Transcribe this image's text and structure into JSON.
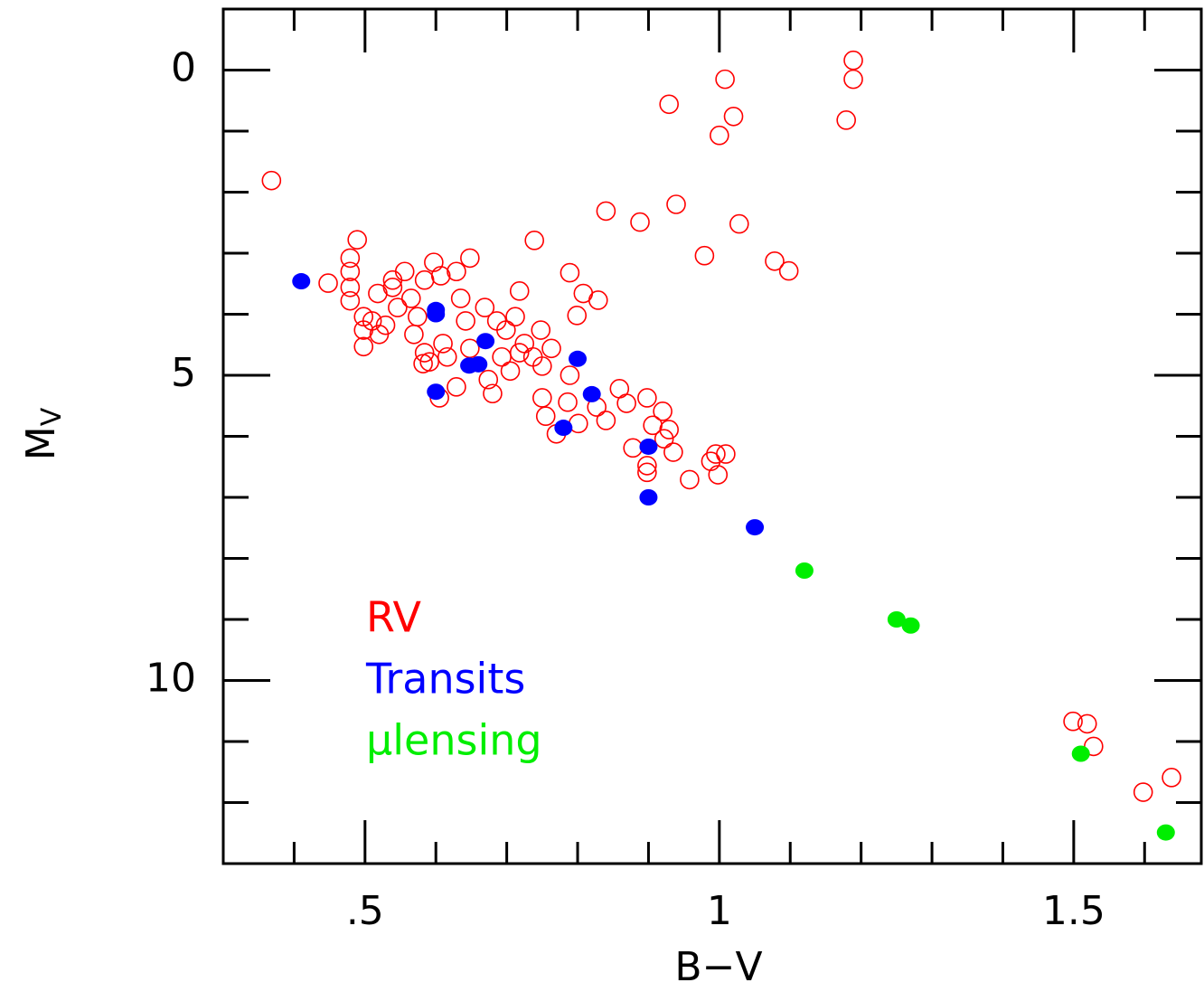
{
  "chart_data": {
    "type": "scatter",
    "xlabel": "B−V",
    "ylabel": "M",
    "ylabel_sub": "V",
    "xlim": [
      0.3,
      1.68
    ],
    "ylim": [
      -1,
      13
    ],
    "y_inverted": true,
    "xticks": [
      {
        "value": 0.5,
        "label": ".5"
      },
      1,
      1.5
    ],
    "xminorticks": [
      0.4,
      0.6,
      0.7,
      0.8,
      0.9,
      1.1,
      1.2,
      1.3,
      1.4,
      1.6
    ],
    "yticks": [
      0,
      5,
      10
    ],
    "yminorticks": [
      1,
      2,
      3,
      4,
      6,
      7,
      8,
      9,
      11,
      12
    ],
    "series": [
      {
        "name": "RV",
        "color": "#ff0000",
        "marker": "open",
        "x": [
          0.368,
          1.189,
          1.189,
          1.008,
          0.929,
          1.02,
          1.0,
          1.179,
          0.84,
          0.888,
          0.939,
          1.028,
          0.979,
          1.078,
          1.098,
          0.739,
          0.489,
          0.789,
          0.808,
          0.829,
          0.799,
          0.448,
          0.479,
          0.479,
          0.479,
          0.479,
          0.498,
          0.498,
          0.498,
          0.51,
          0.518,
          0.52,
          0.529,
          0.539,
          0.539,
          0.546,
          0.556,
          0.565,
          0.569,
          0.574,
          0.584,
          0.584,
          0.597,
          0.607,
          0.61,
          0.616,
          0.629,
          0.635,
          0.642,
          0.648,
          0.648,
          0.629,
          0.669,
          0.674,
          0.68,
          0.686,
          0.693,
          0.699,
          0.705,
          0.712,
          0.718,
          0.718,
          0.725,
          0.737,
          0.748,
          0.75,
          0.763,
          0.75,
          0.755,
          0.77,
          0.786,
          0.789,
          0.827,
          0.84,
          0.859,
          0.869,
          0.878,
          0.898,
          0.898,
          0.898,
          0.906,
          0.92,
          0.922,
          0.929,
          0.935,
          0.958,
          0.988,
          0.995,
          0.998,
          1.009,
          0.591,
          0.582,
          0.605,
          0.801,
          1.499,
          1.519,
          1.528,
          1.598,
          1.638
        ],
        "values": [
          1.81,
          -0.16,
          0.15,
          0.15,
          0.56,
          0.76,
          1.07,
          0.82,
          2.31,
          2.49,
          2.2,
          2.52,
          3.04,
          3.13,
          3.29,
          2.79,
          2.78,
          3.32,
          3.66,
          3.77,
          4.02,
          3.49,
          3.08,
          3.3,
          3.56,
          3.78,
          4.04,
          4.26,
          4.53,
          4.11,
          3.66,
          4.33,
          4.18,
          3.44,
          3.56,
          3.89,
          3.3,
          3.74,
          4.33,
          4.04,
          3.44,
          4.63,
          3.15,
          3.37,
          4.48,
          4.7,
          3.3,
          3.74,
          4.11,
          3.08,
          4.56,
          5.19,
          3.89,
          5.07,
          5.3,
          4.11,
          4.7,
          4.26,
          4.93,
          4.04,
          3.62,
          4.63,
          4.48,
          4.7,
          4.26,
          4.85,
          4.56,
          5.37,
          5.67,
          5.96,
          5.44,
          5.0,
          5.52,
          5.74,
          5.22,
          5.46,
          6.19,
          5.37,
          6.48,
          6.59,
          5.82,
          5.59,
          6.04,
          5.89,
          6.26,
          6.71,
          6.41,
          6.29,
          6.63,
          6.29,
          4.78,
          4.81,
          5.37,
          5.79,
          10.67,
          10.71,
          11.08,
          11.83,
          11.59
        ]
      },
      {
        "name": "Transits",
        "color": "#0000ff",
        "marker": "filled",
        "x": [
          0.41,
          0.6,
          0.6,
          0.67,
          0.647,
          0.66,
          0.8,
          0.6,
          0.82,
          0.78,
          0.9,
          0.9,
          1.05
        ],
        "values": [
          3.46,
          3.93,
          4.0,
          4.44,
          4.84,
          4.82,
          4.73,
          5.27,
          5.31,
          5.86,
          6.17,
          7.0,
          7.49
        ]
      },
      {
        "name": "μlensing",
        "color": "#00ee00",
        "marker": "filled",
        "x": [
          1.12,
          1.25,
          1.27,
          1.51,
          1.63
        ],
        "values": [
          8.2,
          9.0,
          9.1,
          11.2,
          12.49
        ]
      }
    ]
  }
}
